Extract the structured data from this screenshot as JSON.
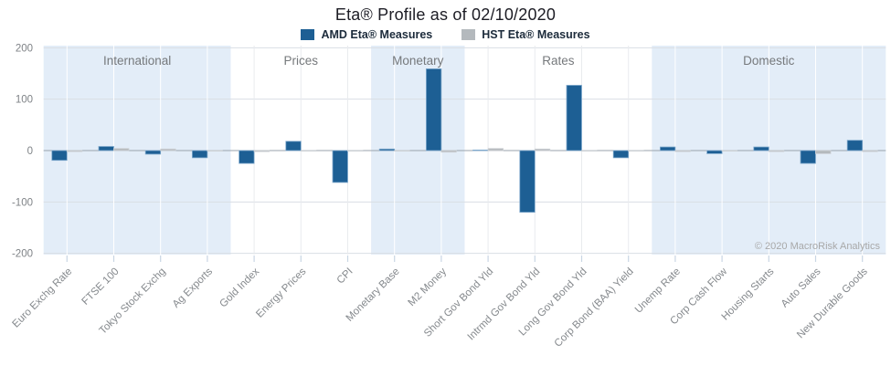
{
  "page": {
    "title": "Eta® Profile as of 02/10/2020",
    "copyright": "© 2020 MacroRisk Analytics"
  },
  "chart_data": {
    "type": "bar",
    "title": "Eta® Profile as of 02/10/2020",
    "categories": [
      "Euro Exchg Rate",
      "FTSE 100",
      "Tokyo Stock Exchg",
      "Ag Exports",
      "Gold Index",
      "Energy Prices",
      "CPI",
      "Monetary Base",
      "M2 Money",
      "Short Gov Bond Yld",
      "Intrmd Gov Bond Yld",
      "Long Gov Bond Yld",
      "Corp Bond (BAA) Yield",
      "Unemp Rate",
      "Corp Cash Flow",
      "Housing Starts",
      "Auto Sales",
      "New Durable Goods"
    ],
    "series": [
      {
        "name": "AMD Eta® Measures",
        "color": "#1d5f94",
        "values": [
          -19,
          8,
          -7,
          -14,
          -25,
          18,
          -62,
          3,
          159,
          0.5,
          -120,
          127,
          -14,
          7,
          -6,
          7,
          -25,
          20
        ]
      },
      {
        "name": "HST Eta® Measures",
        "color": "#b4b9bd",
        "values": [
          -2,
          4,
          3,
          -1,
          -2,
          -1,
          -1,
          -1,
          -3,
          4,
          3,
          -1,
          -1,
          -2,
          -1,
          -2,
          -6,
          -2
        ]
      }
    ],
    "sections": [
      {
        "label": "International",
        "from": 0,
        "to": 3,
        "shaded": true
      },
      {
        "label": "Prices",
        "from": 4,
        "to": 6,
        "shaded": false
      },
      {
        "label": "Monetary",
        "from": 7,
        "to": 8,
        "shaded": true
      },
      {
        "label": "Rates",
        "from": 9,
        "to": 12,
        "shaded": false
      },
      {
        "label": "Domestic",
        "from": 13,
        "to": 17,
        "shaded": true
      }
    ],
    "ylim": [
      -200,
      200
    ],
    "yticks": [
      200,
      100,
      0,
      -100,
      -200
    ],
    "band_color": "#e3edf8",
    "grid": true,
    "legend_position": "top",
    "xlabel": "",
    "ylabel": ""
  },
  "colors": {
    "grid_line": "#d9dee4",
    "zero_line": "#9aa2ab",
    "axis_text": "#7f8387",
    "category_text": "#85898d",
    "section_text": "#76797c",
    "copyright_text": "#a8a8a8",
    "tick_mark": "#c9d6e4"
  }
}
